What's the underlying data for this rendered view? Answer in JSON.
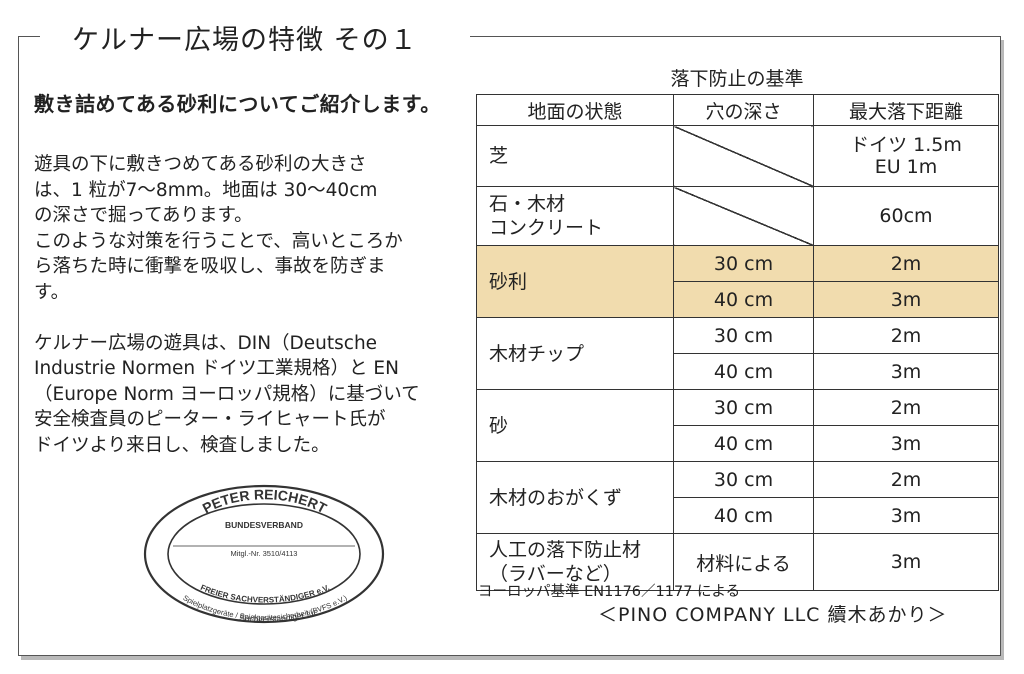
{
  "title": "ケルナー広場の特徴 その１",
  "subtitle": "敷き詰めてある砂利についてご紹介します。",
  "body_lines": [
    "遊具の下に敷きつめてある砂利の大きさ",
    "は、1 粒が7～8mm。地面は 30～40cm",
    "の深さで掘ってあります。",
    "このような対策を行うことで、高いところか",
    "ら落ちた時に衝撃を吸収し、事故を防ぎま",
    "す。",
    "ケルナー広場の遊具は、DIN（Deutsche",
    "Industrie Normen ドイツ工業規格）と EN",
    "（Europe Norm ヨーロッパ規格）に基づいて",
    "安全検査員のピーター・ライヒャート氏が",
    "ドイツより来日し、検査しました。"
  ],
  "stamp": {
    "name": "PETER REICHERT",
    "org": "BUNDESVERBAND",
    "member_no": "Mitgl.-Nr. 3510/4113",
    "title": "FREIER SACHVERSTÄNDIGER e.V.",
    "line1": "Sachverständiger für:",
    "line2": "Spielplatzgeräte / Spielgerätesicherheit (BVFS e.V.)"
  },
  "table": {
    "caption": "落下防止の基準",
    "headers": [
      "地面の状態",
      "穴の深さ",
      "最大落下距離"
    ],
    "rows": {
      "grass": {
        "ground": "芝",
        "fall_1": "ドイツ 1.5m",
        "fall_2": "EU 1m"
      },
      "stone": {
        "ground_1": "石・木材",
        "ground_2": "コンクリート",
        "fall": "60cm"
      },
      "gravel": {
        "ground": "砂利",
        "depth_1": "30 cm",
        "fall_1": "2m",
        "depth_2": "40 cm",
        "fall_2": "3m"
      },
      "chips": {
        "ground": "木材チップ",
        "depth_1": "30 cm",
        "fall_1": "2m",
        "depth_2": "40 cm",
        "fall_2": "3m"
      },
      "sand": {
        "ground": "砂",
        "depth_1": "30 cm",
        "fall_1": "2m",
        "depth_2": "40 cm",
        "fall_2": "3m"
      },
      "sawdust": {
        "ground": "木材のおがくず",
        "depth_1": "30 cm",
        "fall_1": "2m",
        "depth_2": "40 cm",
        "fall_2": "3m"
      },
      "artificial": {
        "ground_1": "人工の落下防止材",
        "ground_2": "（ラバーなど）",
        "depth": "材料による",
        "fall": "3m"
      }
    }
  },
  "note": "ヨーロッパ基準 EN1176／1177 による",
  "credit": "＜PINO COMPANY LLC  續木あかり＞",
  "colors": {
    "highlight": "#f1dcae",
    "frame": "#555555"
  }
}
